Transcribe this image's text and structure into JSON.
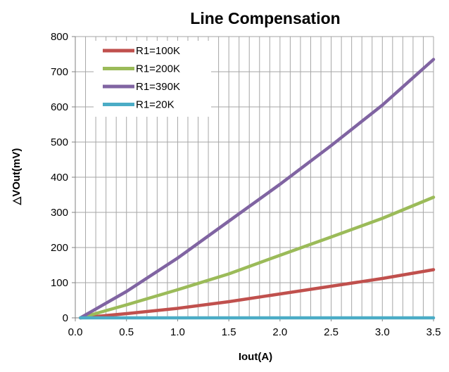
{
  "chart_data": {
    "type": "line",
    "title": "Line Compensation",
    "xlabel": "Iout(A)",
    "ylabel": "△VOut(mV)",
    "xlim": [
      0,
      3.5
    ],
    "ylim": [
      0,
      800
    ],
    "x_ticks": [
      "0.0",
      "0.5",
      "1.0",
      "1.5",
      "2.0",
      "2.5",
      "3.0",
      "3.5"
    ],
    "y_ticks": [
      "0",
      "100",
      "200",
      "300",
      "400",
      "500",
      "600",
      "700",
      "800"
    ],
    "grid": "vertical-minor-and-horizontal",
    "legend_position": "top-left",
    "x": [
      0.05,
      0.5,
      1.0,
      1.5,
      2.0,
      2.5,
      3.0,
      3.5
    ],
    "series": [
      {
        "name": "R1=100K",
        "color": "#c0504d",
        "values": [
          0,
          12,
          27,
          46,
          68,
          90,
          112,
          137
        ]
      },
      {
        "name": "R1=200K",
        "color": "#9bbb59",
        "values": [
          0,
          37,
          80,
          125,
          178,
          230,
          283,
          343
        ]
      },
      {
        "name": "R1=390K",
        "color": "#8064a2",
        "values": [
          0,
          75,
          170,
          275,
          380,
          490,
          605,
          735
        ]
      },
      {
        "name": "R1=20K",
        "color": "#4bacc6",
        "values": [
          0,
          0,
          0,
          0,
          0,
          0,
          0,
          0
        ]
      }
    ]
  }
}
